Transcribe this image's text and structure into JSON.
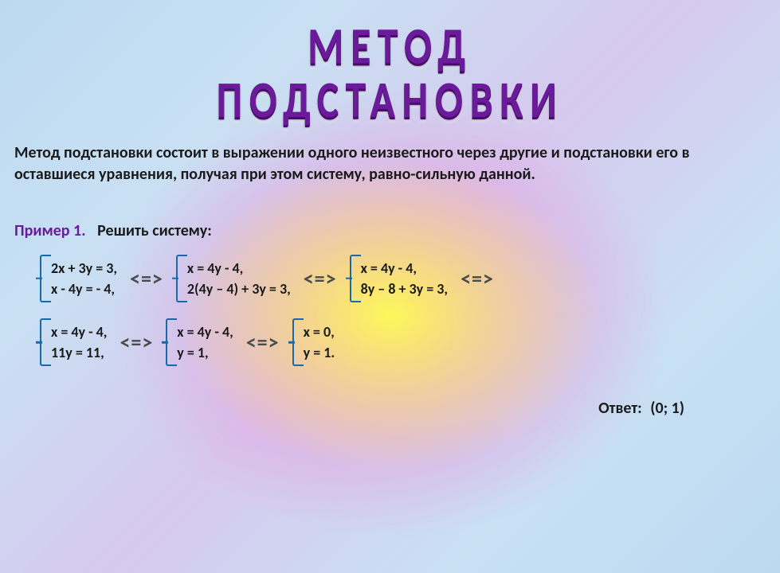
{
  "colors": {
    "title_color": "#6a1b9a",
    "text_color": "#1a1a1a",
    "bracket_color": "#1a6aa8",
    "equiv_color": "#4a4a4a",
    "bg_center": "#fdf85a",
    "bg_mid": "#ec8edb",
    "bg_outer": "#bcd9f2"
  },
  "title": {
    "line1": "МЕТОД",
    "line2": "ПОДСТАНОВКИ",
    "fontsize": 48,
    "letter_spacing": 8
  },
  "description": "Метод подстановки состоит в выражении одного неизвестного через другие и подстановки его в оставшиеся уравнения, получая при этом систему, равно-сильную данной.",
  "example": {
    "label": "Пример 1.",
    "task": "Решить систему:"
  },
  "equiv_symbol": "<=>",
  "systems": {
    "s1": {
      "eq1": "2х + 3у = 3,",
      "eq2": "х  - 4у  = - 4,"
    },
    "s2": {
      "eq1": "х = 4у - 4,",
      "eq2": "2(4у – 4) + 3у  = 3,"
    },
    "s3": {
      "eq1": "х = 4у - 4,",
      "eq2": "8у – 8 + 3у = 3,"
    },
    "s4": {
      "eq1": "х = 4у - 4,",
      "eq2": "11у = 11,"
    },
    "s5": {
      "eq1": "х = 4у - 4,",
      "eq2": "у = 1,"
    },
    "s6": {
      "eq1": "х = 0,",
      "eq2": "у = 1."
    }
  },
  "answer": {
    "label": "Ответ:",
    "value": "(0; 1)"
  },
  "typography": {
    "body_fontsize": 20,
    "system_fontsize": 18,
    "equiv_fontsize": 26,
    "font_weight": "bold",
    "font_family": "Calibri"
  }
}
